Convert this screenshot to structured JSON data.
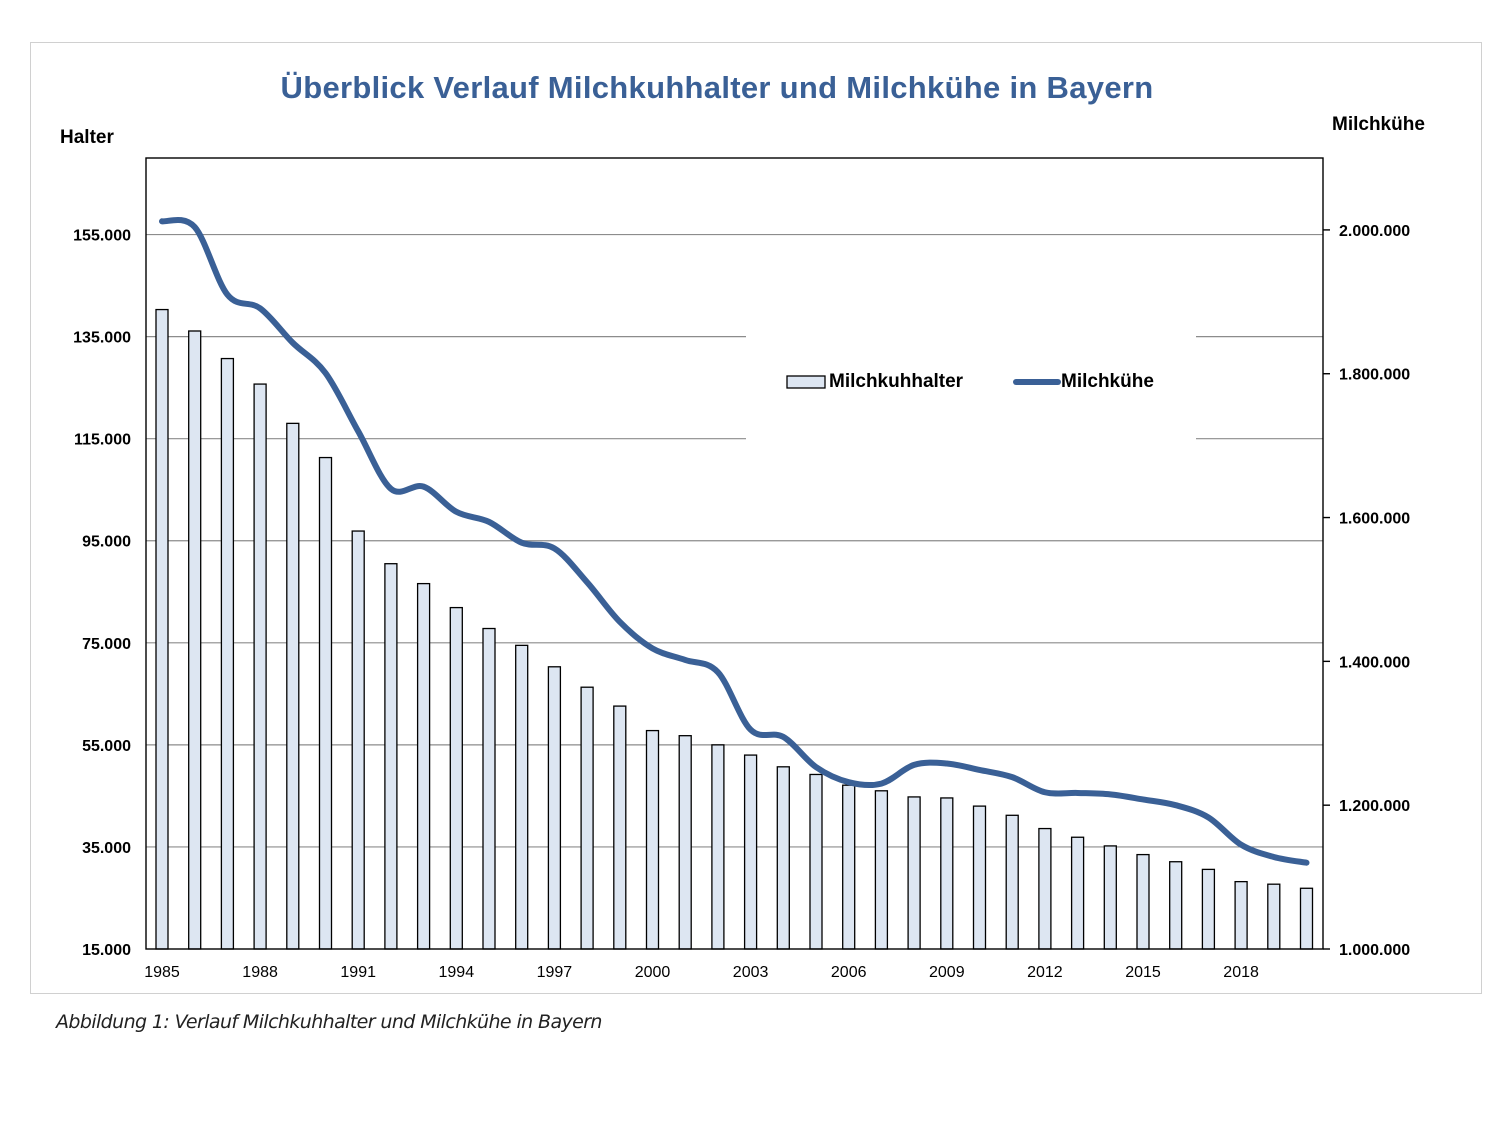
{
  "chart_data": {
    "type": "bar+line",
    "title": "Überblick Verlauf Milchkuhhalter und Milchkühe in Bayern",
    "caption": "Abbildung 1: Verlauf Milchkuhhalter und Milchkühe in Bayern",
    "y_left_label": "Halter",
    "y_right_label": "Milchkühe",
    "y_left": {
      "min": 15000,
      "max": 170000,
      "ticks": [
        15000,
        35000,
        55000,
        75000,
        95000,
        115000,
        135000,
        155000
      ],
      "tick_labels": [
        "15.000",
        "35.000",
        "55.000",
        "75.000",
        "95.000",
        "115.000",
        "135.000",
        "155.000"
      ]
    },
    "y_right": {
      "min": 1000000,
      "max": 2100000,
      "ticks": [
        1000000,
        1200000,
        1400000,
        1600000,
        1800000,
        2000000
      ],
      "tick_labels": [
        "1.000.000",
        "1.200.000",
        "1.400.000",
        "1.600.000",
        "1.800.000",
        "2.000.000"
      ]
    },
    "x_tick_labels": [
      "1985",
      "1988",
      "1991",
      "1994",
      "1997",
      "2000",
      "2003",
      "2006",
      "2009",
      "2012",
      "2015",
      "2018"
    ],
    "grid": true,
    "legend_position": "center-right",
    "years": [
      1985,
      1986,
      1987,
      1988,
      1989,
      1990,
      1991,
      1992,
      1993,
      1994,
      1995,
      1996,
      1997,
      1998,
      1999,
      2000,
      2001,
      2002,
      2003,
      2004,
      2005,
      2006,
      2007,
      2008,
      2009,
      2010,
      2011,
      2012,
      2013,
      2014,
      2015,
      2016,
      2017,
      2018,
      2019,
      2020
    ],
    "series": [
      {
        "name": "Milchkuhhalter",
        "type": "bar",
        "axis": "left",
        "color": "#dde6f2",
        "values": [
          140300,
          136100,
          130700,
          125700,
          118000,
          111300,
          96900,
          90500,
          86600,
          81900,
          77800,
          74500,
          70300,
          66300,
          62600,
          57800,
          56800,
          55000,
          53000,
          50700,
          49200,
          47100,
          46000,
          44800,
          44600,
          43000,
          41200,
          38600,
          36900,
          35200,
          33500,
          32100,
          30600,
          28200,
          27700,
          26900
        ]
      },
      {
        "name": "Milchkühe",
        "type": "line",
        "axis": "right",
        "color": "#3a6096",
        "values": [
          2012000,
          2004000,
          1910000,
          1891000,
          1843000,
          1801000,
          1720000,
          1640000,
          1643000,
          1608000,
          1594000,
          1565000,
          1557000,
          1510000,
          1455000,
          1418000,
          1402000,
          1385000,
          1305000,
          1295000,
          1253000,
          1232000,
          1230000,
          1256000,
          1258000,
          1249000,
          1239000,
          1218000,
          1217000,
          1215000,
          1208000,
          1200000,
          1183000,
          1145000,
          1128000,
          1120000
        ]
      }
    ]
  }
}
